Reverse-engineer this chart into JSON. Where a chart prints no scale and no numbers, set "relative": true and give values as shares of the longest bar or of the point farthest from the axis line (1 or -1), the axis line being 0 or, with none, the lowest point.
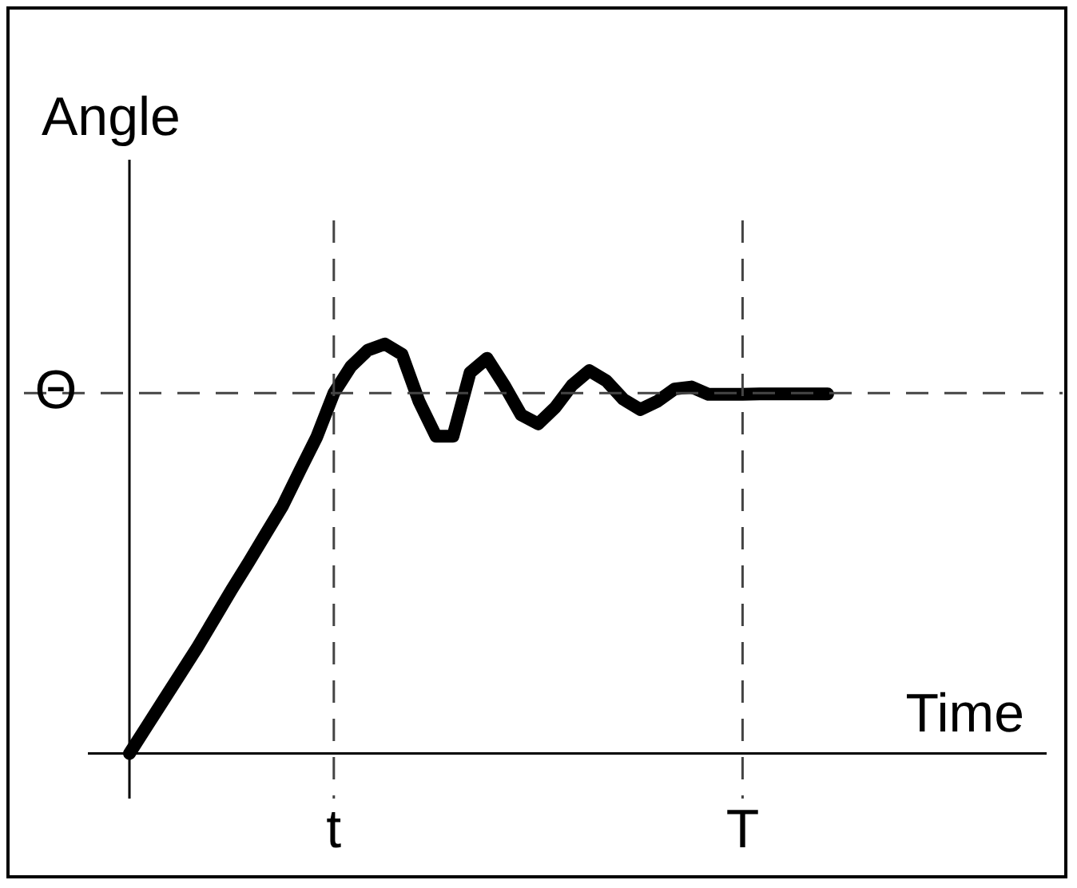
{
  "chart_data": {
    "type": "line",
    "ylabel": "Angle",
    "xlabel": "Time",
    "relative": true,
    "tick_labels": "x",
    "marker": "none",
    "line_style": "solid",
    "categories": [
      null,
      null,
      null,
      null,
      null,
      null,
      null,
      null,
      null,
      null,
      null,
      null,
      "t",
      null,
      null,
      null,
      null,
      null,
      null,
      null,
      null,
      null,
      null,
      null,
      null,
      null,
      null,
      null,
      null,
      null,
      null,
      null,
      null,
      null,
      null,
      null,
      "T",
      null,
      null,
      null,
      null,
      null
    ],
    "series": [
      {
        "color": "#000000",
        "values": [
          0,
          0.065,
          0.13,
          0.195,
          0.26,
          0.33,
          0.4,
          0.467,
          0.536,
          0.605,
          0.69,
          0.773,
          0.88,
          0.945,
          0.985,
          1,
          0.975,
          0.86,
          0.775,
          0.775,
          0.93,
          0.965,
          0.9,
          0.827,
          0.805,
          0.845,
          0.9,
          0.935,
          0.91,
          0.865,
          0.84,
          0.86,
          0.89,
          0.895,
          0.877,
          0.877,
          0.877,
          0.878,
          0.878,
          0.878,
          0.878,
          0.878
        ]
      }
    ],
    "ref_lines": [
      {
        "axis": "y",
        "value": 0.88,
        "label": "Θ",
        "color": "#444444",
        "line_style": "dashed"
      },
      {
        "axis": "x",
        "value": "t",
        "color": "#444444",
        "line_style": "dashed"
      },
      {
        "axis": "x",
        "value": "T",
        "color": "#444444",
        "line_style": "dashed"
      }
    ]
  }
}
